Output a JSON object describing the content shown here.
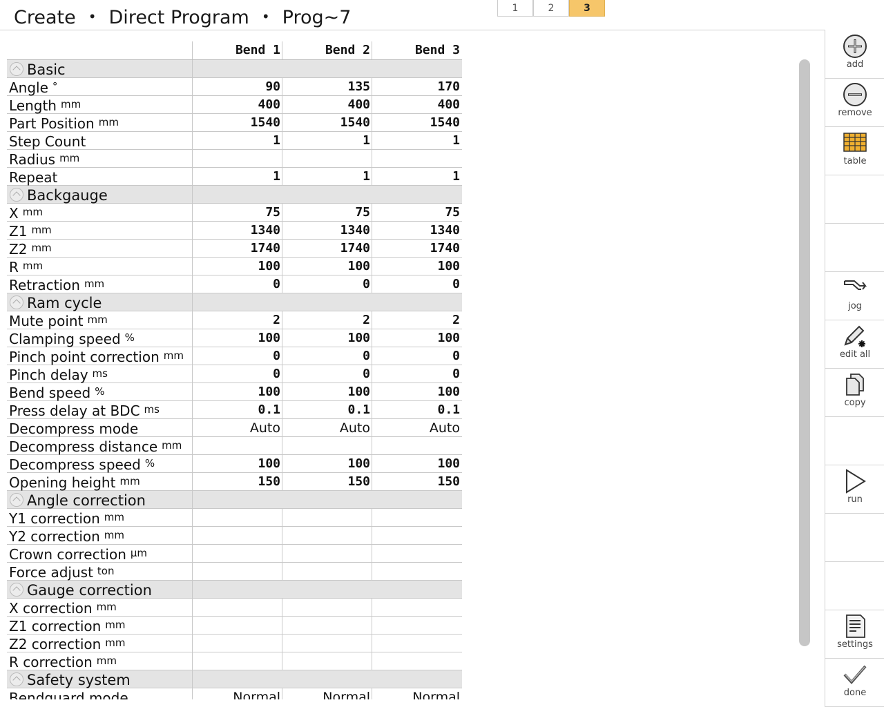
{
  "breadcrumb": {
    "part1": "Create",
    "part2": "Direct Program",
    "part3": "Prog~7",
    "sep": "•"
  },
  "pages": [
    "1",
    "2",
    "3"
  ],
  "active_page": "3",
  "table": {
    "columns": [
      "Bend 1",
      "Bend 2",
      "Bend 3"
    ],
    "rows": [
      {
        "type": "section",
        "label": "Basic"
      },
      {
        "label": "Angle",
        "unit": "°",
        "values": [
          "90",
          "135",
          "170"
        ]
      },
      {
        "label": "Length",
        "unit": "mm",
        "values": [
          "400",
          "400",
          "400"
        ]
      },
      {
        "label": "Part Position",
        "unit": "mm",
        "values": [
          "1540",
          "1540",
          "1540"
        ]
      },
      {
        "label": "Step Count",
        "unit": "",
        "values": [
          "1",
          "1",
          "1"
        ]
      },
      {
        "label": "Radius",
        "unit": "mm",
        "values": [
          "",
          "",
          ""
        ]
      },
      {
        "label": "Repeat",
        "unit": "",
        "values": [
          "1",
          "1",
          "1"
        ]
      },
      {
        "type": "section",
        "label": "Backgauge"
      },
      {
        "label": "X",
        "unit": "mm",
        "values": [
          "75",
          "75",
          "75"
        ]
      },
      {
        "label": "Z1",
        "unit": "mm",
        "values": [
          "1340",
          "1340",
          "1340"
        ]
      },
      {
        "label": "Z2",
        "unit": "mm",
        "values": [
          "1740",
          "1740",
          "1740"
        ]
      },
      {
        "label": "R",
        "unit": "mm",
        "values": [
          "100",
          "100",
          "100"
        ]
      },
      {
        "label": "Retraction",
        "unit": "mm",
        "values": [
          "0",
          "0",
          "0"
        ]
      },
      {
        "type": "section",
        "label": "Ram cycle"
      },
      {
        "label": "Mute point",
        "unit": "mm",
        "values": [
          "2",
          "2",
          "2"
        ]
      },
      {
        "label": "Clamping speed",
        "unit": "%",
        "values": [
          "100",
          "100",
          "100"
        ]
      },
      {
        "label": "Pinch point correction",
        "unit": "mm",
        "values": [
          "0",
          "0",
          "0"
        ]
      },
      {
        "label": "Pinch delay",
        "unit": "ms",
        "values": [
          "0",
          "0",
          "0"
        ]
      },
      {
        "label": "Bend speed",
        "unit": "%",
        "values": [
          "100",
          "100",
          "100"
        ]
      },
      {
        "label": "Press delay at BDC",
        "unit": "ms",
        "values": [
          "0.1",
          "0.1",
          "0.1"
        ]
      },
      {
        "label": "Decompress mode",
        "unit": "",
        "text": true,
        "values": [
          "Auto",
          "Auto",
          "Auto"
        ]
      },
      {
        "label": "Decompress distance",
        "unit": "mm",
        "values": [
          "",
          "",
          ""
        ]
      },
      {
        "label": "Decompress speed",
        "unit": "%",
        "values": [
          "100",
          "100",
          "100"
        ]
      },
      {
        "label": "Opening height",
        "unit": "mm",
        "values": [
          "150",
          "150",
          "150"
        ]
      },
      {
        "type": "section",
        "label": "Angle correction"
      },
      {
        "label": "Y1 correction",
        "unit": "mm",
        "values": [
          "",
          "",
          ""
        ]
      },
      {
        "label": "Y2 correction",
        "unit": "mm",
        "values": [
          "",
          "",
          ""
        ]
      },
      {
        "label": "Crown correction",
        "unit": "µm",
        "values": [
          "",
          "",
          ""
        ]
      },
      {
        "label": "Force adjust",
        "unit": "ton",
        "values": [
          "",
          "",
          ""
        ]
      },
      {
        "type": "section",
        "label": "Gauge correction"
      },
      {
        "label": "X correction",
        "unit": "mm",
        "values": [
          "",
          "",
          ""
        ]
      },
      {
        "label": "Z1 correction",
        "unit": "mm",
        "values": [
          "",
          "",
          ""
        ]
      },
      {
        "label": "Z2 correction",
        "unit": "mm",
        "values": [
          "",
          "",
          ""
        ]
      },
      {
        "label": "R correction",
        "unit": "mm",
        "values": [
          "",
          "",
          ""
        ]
      },
      {
        "type": "section",
        "label": "Safety system"
      },
      {
        "label": "Bendguard mode",
        "unit": "",
        "text": true,
        "values": [
          "Normal",
          "Normal",
          "Normal"
        ]
      }
    ]
  },
  "toolbar": [
    {
      "label": "add",
      "icon": "add-icon"
    },
    {
      "label": "remove",
      "icon": "remove-icon"
    },
    {
      "label": "table",
      "icon": "table-icon"
    },
    {
      "label": "",
      "icon": ""
    },
    {
      "label": "",
      "icon": ""
    },
    {
      "label": "jog",
      "icon": "jog-icon"
    },
    {
      "label": "edit all",
      "icon": "edit-all-icon"
    },
    {
      "label": "copy",
      "icon": "copy-icon"
    },
    {
      "label": "",
      "icon": ""
    },
    {
      "label": "run",
      "icon": "run-icon"
    },
    {
      "label": "",
      "icon": ""
    },
    {
      "label": "",
      "icon": ""
    },
    {
      "label": "settings",
      "icon": "settings-icon"
    },
    {
      "label": "done",
      "icon": "done-icon"
    }
  ],
  "colors": {
    "active_tab": "#f6c66a",
    "section_bg": "#e4e4e4",
    "table_icon": "#f0b030"
  }
}
